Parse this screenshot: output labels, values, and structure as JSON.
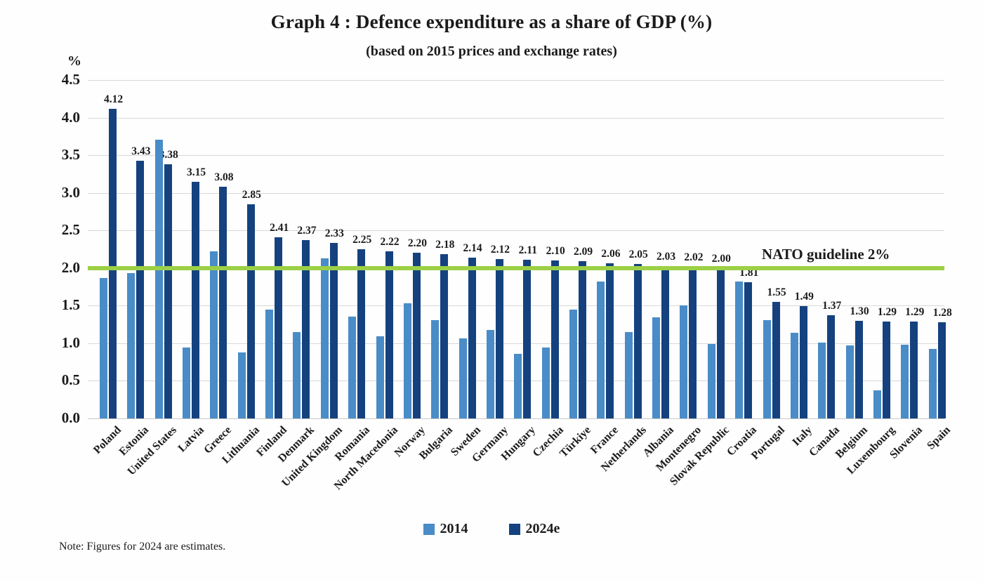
{
  "title": "Graph 4 : Defence expenditure as a share of GDP (%)",
  "subtitle": "(based on 2015 prices and exchange rates)",
  "note": "Note: Figures for 2024 are estimates.",
  "y_axis_unit": "%",
  "legend": [
    {
      "label": "2014",
      "color": "#4a8cc7"
    },
    {
      "label": "2024e",
      "color": "#15427f"
    }
  ],
  "guideline": {
    "value": 2.0,
    "label": "NATO guideline 2%",
    "color": "#9cd046"
  },
  "colors": {
    "bar_2014": "#4a8cc7",
    "bar_2024e": "#15427f",
    "guideline": "#9cd046",
    "gridline": "#d8d8d8",
    "text": "#1b1b1b"
  },
  "chart_data": {
    "type": "bar",
    "title": "Graph 4 : Defence expenditure as a share of GDP (%)",
    "subtitle": "(based on 2015 prices and exchange rates)",
    "ylabel": "%",
    "ylim": [
      0,
      4.5
    ],
    "ytick_step": 0.5,
    "ytick_labels": [
      "0.0",
      "0.5",
      "1.0",
      "1.5",
      "2.0",
      "2.5",
      "3.0",
      "3.5",
      "4.0",
      "4.5"
    ],
    "grid": true,
    "legend_position": "bottom",
    "guideline": {
      "value": 2.0,
      "label": "NATO guideline 2%"
    },
    "categories": [
      "Poland",
      "Estonia",
      "United States",
      "Latvia",
      "Greece",
      "Lithuania",
      "Finland",
      "Denmark",
      "United Kingdom",
      "Romania",
      "North Macedonia",
      "Norway",
      "Bulgaria",
      "Sweden",
      "Germany",
      "Hungary",
      "Czechia",
      "Türkiye",
      "France",
      "Netherlands",
      "Albania",
      "Montenegro",
      "Slovak Republic",
      "Croatia",
      "Portugal",
      "Italy",
      "Canada",
      "Belgium",
      "Luxembourg",
      "Slovenia",
      "Spain"
    ],
    "series": [
      {
        "name": "2014",
        "values": [
          1.87,
          1.93,
          3.71,
          0.94,
          2.22,
          0.88,
          1.45,
          1.15,
          2.13,
          1.35,
          1.09,
          1.53,
          1.31,
          1.06,
          1.18,
          0.86,
          0.94,
          1.45,
          1.82,
          1.15,
          1.34,
          1.5,
          0.99,
          1.82,
          1.31,
          1.14,
          1.01,
          0.97,
          0.37,
          0.98,
          0.92
        ],
        "labels_shown": false
      },
      {
        "name": "2024e",
        "values": [
          4.12,
          3.43,
          3.38,
          3.15,
          3.08,
          2.85,
          2.41,
          2.37,
          2.33,
          2.25,
          2.22,
          2.2,
          2.18,
          2.14,
          2.12,
          2.11,
          2.1,
          2.09,
          2.06,
          2.05,
          2.03,
          2.02,
          2.0,
          1.81,
          1.55,
          1.49,
          1.37,
          1.3,
          1.29,
          1.29,
          1.28
        ],
        "labels_shown": true,
        "data_labels": [
          "4.12",
          "3.43",
          "3.38",
          "3.15",
          "3.08",
          "2.85",
          "2.41",
          "2.37",
          "2.33",
          "2.25",
          "2.22",
          "2.20",
          "2.18",
          "2.14",
          "2.12",
          "2.11",
          "2.10",
          "2.09",
          "2.06",
          "2.05",
          "2.03",
          "2.02",
          "2.00",
          "1.81",
          "1.55",
          "1.49",
          "1.37",
          "1.30",
          "1.29",
          "1.29",
          "1.28"
        ]
      }
    ]
  }
}
